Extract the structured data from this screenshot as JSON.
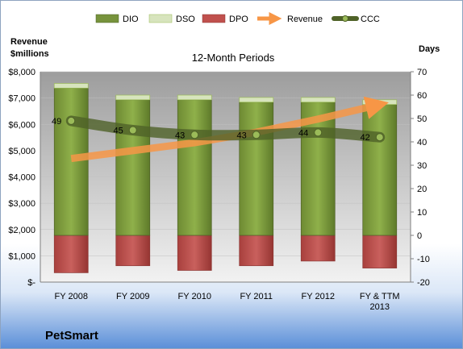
{
  "chart_data": {
    "type": "bar",
    "title": "12-Month Periods",
    "footer": "PetSmart",
    "y_left": {
      "label_line1": "Revenue",
      "label_line2": "$millions",
      "ticks": [
        "$-",
        "$1,000",
        "$2,000",
        "$3,000",
        "$4,000",
        "$5,000",
        "$6,000",
        "$7,000",
        "$8,000"
      ],
      "ylim": [
        0,
        8000
      ]
    },
    "y_right": {
      "label": "Days",
      "ticks": [
        "-20",
        "-10",
        "0",
        "10",
        "20",
        "30",
        "40",
        "50",
        "60",
        "70"
      ],
      "ylim": [
        -20,
        70
      ]
    },
    "categories": [
      [
        "FY 2008"
      ],
      [
        "FY 2009"
      ],
      [
        "FY 2010"
      ],
      [
        "FY 2011"
      ],
      [
        "FY 2012"
      ],
      [
        "FY & TTM",
        "2013"
      ]
    ],
    "legend": [
      "DIO",
      "DSO",
      "DPO",
      "Revenue",
      "CCC"
    ],
    "series": [
      {
        "name": "DIO",
        "axis": "right",
        "values": [
          63,
          58,
          58,
          57,
          57,
          56
        ]
      },
      {
        "name": "DSO",
        "axis": "right",
        "values": [
          2,
          2,
          2,
          2,
          2,
          2
        ]
      },
      {
        "name": "DPO",
        "axis": "right",
        "values": [
          -16,
          -13,
          -15,
          -13,
          -11,
          -14
        ]
      },
      {
        "name": "Revenue",
        "axis": "left",
        "values": [
          4700,
          5000,
          5300,
          5700,
          6200,
          6750
        ]
      },
      {
        "name": "CCC",
        "axis": "right",
        "values": [
          49,
          45,
          43,
          43,
          44,
          42
        ]
      }
    ],
    "ccc_labels": [
      "49",
      "45",
      "43",
      "43",
      "44",
      "42"
    ],
    "colors": {
      "DIO": "#77933c",
      "DSO": "#d7e4bd",
      "DPO": "#c0504d",
      "Revenue": "#f79646",
      "CCC": "#4f6228",
      "plot_bg_top": "#9d9d9d",
      "plot_bg_bottom": "#f2f2f2"
    }
  }
}
